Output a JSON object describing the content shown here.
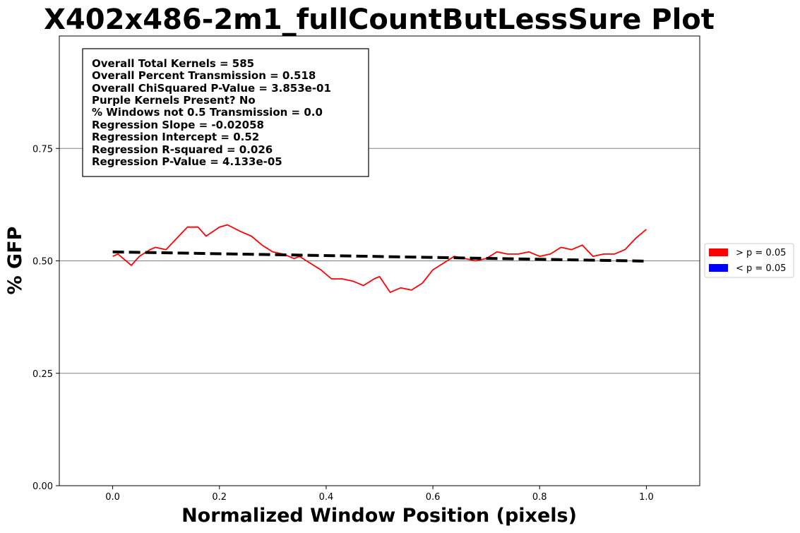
{
  "chart_data": {
    "type": "line",
    "title": "X402x486-2m1_fullCountButLessSure Plot",
    "xlabel": "Normalized Window Position (pixels)",
    "ylabel": "% GFP",
    "xlim": [
      -0.1,
      1.1
    ],
    "ylim": [
      0.0,
      1.0
    ],
    "xticks": [
      0.0,
      0.2,
      0.4,
      0.6,
      0.8,
      1.0
    ],
    "xtick_labels": [
      "0.0",
      "0.2",
      "0.4",
      "0.6",
      "0.8",
      "1.0"
    ],
    "yticks": [
      0.0,
      0.25,
      0.5,
      0.75
    ],
    "ytick_labels": [
      "0.00",
      "0.25",
      "0.50",
      "0.75"
    ],
    "grid": "horizontal",
    "stats_lines": [
      "Overall Total Kernels = 585",
      "Overall Percent Transmission = 0.518",
      "Overall ChiSquared P-Value = 3.853e-01",
      "Purple Kernels Present? No",
      "% Windows not 0.5 Transmission = 0.0",
      "Regression Slope = -0.02058",
      "Regression Intercept = 0.52",
      "Regression R-squared = 0.026",
      "Regression P-Value = 4.133e-05"
    ],
    "legend": {
      "placement": "outside-right",
      "entries": [
        {
          "label": "> p = 0.05",
          "color": "#ff0000"
        },
        {
          "label": "< p = 0.05",
          "color": "#0000ff"
        }
      ]
    },
    "series": [
      {
        "color": "#ff0000",
        "x": [
          0.0,
          0.01,
          0.02,
          0.035,
          0.05,
          0.07,
          0.08,
          0.1,
          0.12,
          0.14,
          0.16,
          0.175,
          0.2,
          0.215,
          0.24,
          0.26,
          0.28,
          0.3,
          0.32,
          0.34,
          0.35,
          0.37,
          0.39,
          0.41,
          0.43,
          0.45,
          0.47,
          0.49,
          0.5,
          0.52,
          0.54,
          0.56,
          0.58,
          0.6,
          0.62,
          0.64,
          0.66,
          0.68,
          0.7,
          0.72,
          0.74,
          0.76,
          0.78,
          0.8,
          0.82,
          0.84,
          0.86,
          0.88,
          0.9,
          0.92,
          0.94,
          0.96,
          0.98,
          1.0
        ],
        "y": [
          0.51,
          0.515,
          0.505,
          0.49,
          0.51,
          0.525,
          0.53,
          0.525,
          0.55,
          0.575,
          0.575,
          0.555,
          0.575,
          0.58,
          0.565,
          0.555,
          0.535,
          0.52,
          0.515,
          0.505,
          0.51,
          0.495,
          0.48,
          0.46,
          0.46,
          0.455,
          0.445,
          0.46,
          0.465,
          0.43,
          0.44,
          0.435,
          0.45,
          0.48,
          0.495,
          0.51,
          0.505,
          0.5,
          0.505,
          0.52,
          0.515,
          0.515,
          0.52,
          0.51,
          0.515,
          0.53,
          0.525,
          0.535,
          0.51,
          0.515,
          0.515,
          0.525,
          0.55,
          0.57
        ]
      },
      {
        "color": "#000000",
        "style": "dashed",
        "x": [
          0.0,
          1.0
        ],
        "y": [
          0.52,
          0.49942
        ]
      }
    ]
  }
}
